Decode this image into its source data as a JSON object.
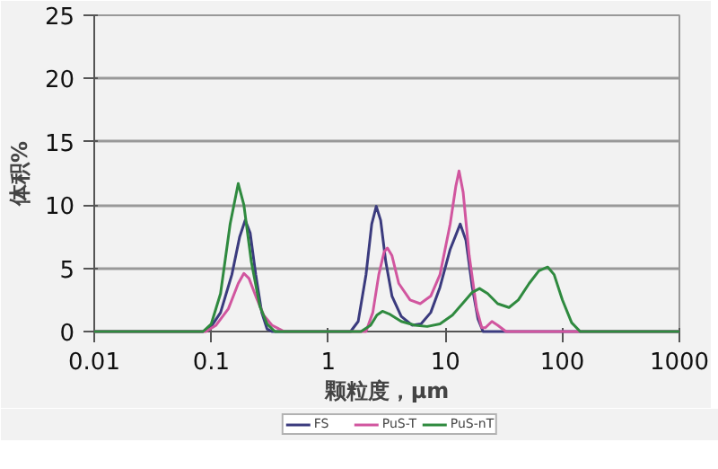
{
  "chart_data": {
    "type": "line",
    "xlabel": "颗粒度，μm",
    "ylabel": "体积%",
    "log": "x",
    "grid": "y",
    "legend": "bottom",
    "marker": "none",
    "line_style": "solid",
    "xlim": [
      0.01,
      1000
    ],
    "xticks": [
      0.01,
      0.1,
      1,
      10,
      100,
      1000
    ],
    "ylim": [
      0,
      25
    ],
    "yticks": [
      0,
      5,
      10,
      15,
      20,
      25
    ],
    "series": [
      {
        "name": "FS",
        "color": "#3b3b7e",
        "x": [
          0.01,
          0.085,
          0.1,
          0.12,
          0.15,
          0.175,
          0.195,
          0.215,
          0.24,
          0.27,
          0.3,
          0.33,
          1.55,
          1.8,
          2.1,
          2.35,
          2.57,
          2.8,
          3.1,
          3.5,
          4.2,
          5.2,
          6.2,
          7.5,
          9,
          11,
          13.4,
          15,
          17,
          19,
          21,
          1000
        ],
        "values": [
          0,
          0,
          0.4,
          1.5,
          4.5,
          7.5,
          8.8,
          7.8,
          4.5,
          1.5,
          0.2,
          0,
          0,
          0.8,
          4.5,
          8.5,
          9.9,
          8.8,
          5.5,
          2.8,
          1.2,
          0.5,
          0.6,
          1.5,
          3.5,
          6.5,
          8.5,
          7.2,
          3.5,
          1,
          0,
          0
        ]
      },
      {
        "name": "PuS-T",
        "color": "#d1569f",
        "x": [
          0.01,
          0.09,
          0.11,
          0.14,
          0.17,
          0.19,
          0.21,
          0.24,
          0.28,
          0.33,
          0.38,
          0.42,
          2.1,
          2.4,
          2.7,
          3.0,
          3.2,
          3.5,
          4.0,
          5,
          6.1,
          7.5,
          9,
          11,
          12.3,
          13.1,
          14.2,
          16,
          18.5,
          20.5,
          22,
          25,
          28,
          33,
          1000
        ],
        "values": [
          0,
          0,
          0.5,
          1.8,
          3.8,
          4.6,
          4.2,
          2.8,
          1.3,
          0.5,
          0.2,
          0,
          0,
          1.5,
          4.5,
          6.3,
          6.6,
          6.0,
          3.8,
          2.5,
          2.2,
          2.8,
          4.5,
          8.5,
          11.5,
          12.7,
          11,
          6,
          1.8,
          0.3,
          0.3,
          0.8,
          0.5,
          0,
          0
        ]
      },
      {
        "name": "PuS-nT",
        "color": "#2f8a3f",
        "x": [
          0.01,
          0.085,
          0.1,
          0.12,
          0.145,
          0.17,
          0.19,
          0.22,
          0.26,
          0.3,
          0.35,
          1.9,
          2.3,
          2.6,
          2.9,
          3.3,
          4.2,
          5.5,
          7,
          9,
          11.5,
          14,
          17,
          19.6,
          23,
          28,
          35,
          42,
          52,
          63,
          75,
          85,
          100,
          120,
          142,
          1000
        ],
        "values": [
          0,
          0,
          0.6,
          3,
          8.5,
          11.7,
          10,
          5.5,
          2,
          0.6,
          0,
          0,
          0.5,
          1.3,
          1.6,
          1.4,
          0.8,
          0.5,
          0.4,
          0.6,
          1.3,
          2.2,
          3.1,
          3.4,
          3,
          2.2,
          1.9,
          2.5,
          3.8,
          4.8,
          5.1,
          4.5,
          2.5,
          0.7,
          0,
          0
        ]
      }
    ]
  }
}
